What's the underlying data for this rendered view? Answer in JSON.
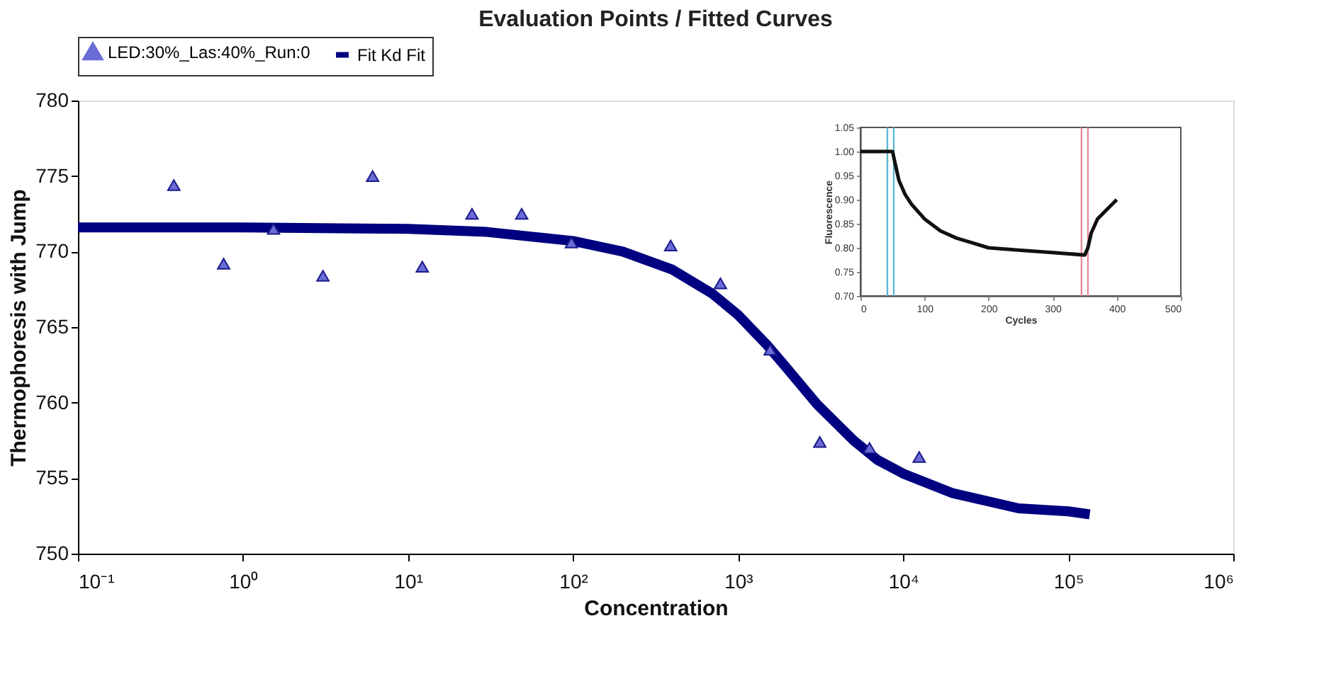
{
  "chart_data": [
    {
      "type": "scatter",
      "title": "Evaluation Points / Fitted Curves",
      "xlabel": "Concentration",
      "ylabel": "Thermophoresis with Jump",
      "log": "x",
      "xlim": [
        0.1,
        1000000
      ],
      "xticks": [
        {
          "value": 0.1,
          "label": "10⁻¹"
        },
        {
          "value": 1,
          "label": "10⁰"
        },
        {
          "value": 10,
          "label": "10¹"
        },
        {
          "value": 100,
          "label": "10²"
        },
        {
          "value": 1000,
          "label": "10³"
        },
        {
          "value": 10000,
          "label": "10⁴"
        },
        {
          "value": 100000,
          "label": "10⁵"
        },
        {
          "value": 1000000,
          "label": "10⁶"
        }
      ],
      "ylim": [
        750,
        780
      ],
      "yticks": [
        750,
        755,
        760,
        765,
        770,
        775,
        780
      ],
      "grid": false,
      "legend": "top",
      "series": [
        {
          "name": "LED:30%_Las:40%_Run:0",
          "type": "scatter",
          "marker": "triangle",
          "color": "#6b6bd6",
          "x": [
            0.381,
            0.763,
            1.53,
            3.05,
            6.1,
            12.2,
            24.4,
            48.8,
            97.7,
            390,
            781,
            1562,
            3125,
            6250,
            12500
          ],
          "values": [
            774.4,
            769.2,
            771.5,
            768.4,
            775.0,
            769.0,
            772.5,
            772.5,
            770.6,
            770.4,
            767.9,
            763.5,
            757.4,
            757.0,
            756.4
          ]
        },
        {
          "name": "Fit Kd Fit",
          "type": "line",
          "line_style": "solid",
          "color": "#000080",
          "x": [
            0.1,
            1,
            10,
            30,
            100,
            200,
            400,
            700,
            1000,
            1500,
            2000,
            3000,
            5000,
            7000,
            10000,
            20000,
            50000,
            100000,
            135000
          ],
          "values": [
            771.6,
            771.6,
            771.5,
            771.3,
            770.7,
            770.0,
            768.8,
            767.2,
            765.8,
            763.8,
            762.2,
            759.9,
            757.5,
            756.2,
            755.3,
            754.0,
            753.0,
            752.8,
            752.6
          ]
        }
      ]
    },
    {
      "type": "line",
      "xlabel": "Cycles",
      "ylabel": "Fluorescence",
      "xlim": [
        0,
        500
      ],
      "xticks": [
        0,
        100,
        200,
        300,
        400,
        500
      ],
      "ylim": [
        0.7,
        1.05
      ],
      "yticks": [
        {
          "value": 0.7,
          "label": "0.70"
        },
        {
          "value": 0.75,
          "label": "0.75"
        },
        {
          "value": 0.8,
          "label": "0.80"
        },
        {
          "value": 0.85,
          "label": "0.85"
        },
        {
          "value": 0.9,
          "label": "0.90"
        },
        {
          "value": 0.95,
          "label": "0.95"
        },
        {
          "value": 1.0,
          "label": "1.00"
        },
        {
          "value": 1.05,
          "label": "1.05"
        }
      ],
      "grid": false,
      "series": [
        {
          "color": "#111111",
          "x": [
            0,
            20,
            40,
            50,
            55,
            60,
            70,
            80,
            100,
            125,
            150,
            175,
            200,
            250,
            300,
            350,
            355,
            360,
            370,
            385,
            400
          ],
          "values": [
            1.0,
            1.0,
            1.0,
            1.0,
            0.97,
            0.94,
            0.91,
            0.89,
            0.86,
            0.835,
            0.82,
            0.81,
            0.8,
            0.795,
            0.79,
            0.785,
            0.8,
            0.83,
            0.86,
            0.88,
            0.9
          ]
        }
      ],
      "ref_lines": [
        {
          "axis": "x",
          "value": 42,
          "color": "#5fb8d0"
        },
        {
          "axis": "x",
          "value": 52,
          "color": "#5fb8d0"
        },
        {
          "axis": "x",
          "value": 345,
          "color": "#e88a9a"
        },
        {
          "axis": "x",
          "value": 355,
          "color": "#e88a9a"
        }
      ]
    }
  ]
}
